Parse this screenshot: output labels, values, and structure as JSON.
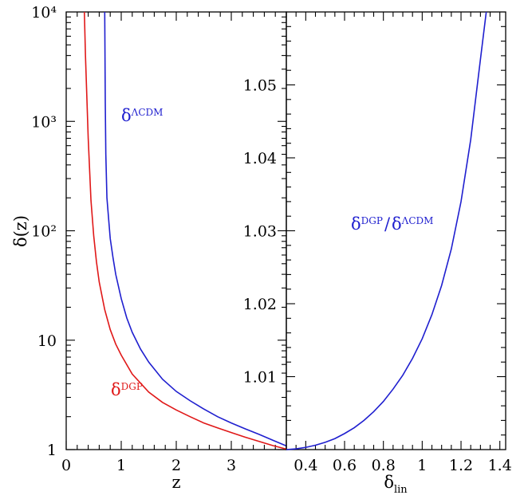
{
  "chart_data": [
    {
      "type": "line",
      "xlabel": "z",
      "ylabel": "δ(z)",
      "xlim": [
        0,
        4
      ],
      "ylim": [
        1,
        10000
      ],
      "yscale": "log",
      "grid": false,
      "xticks": [
        "0",
        "1",
        "2",
        "3"
      ],
      "yticks": [
        {
          "value": 1,
          "label": "1"
        },
        {
          "value": 10,
          "label": "10"
        },
        {
          "value": 100,
          "label": "10²"
        },
        {
          "value": 1000,
          "label": "10³"
        },
        {
          "value": 10000,
          "label": "10⁴"
        }
      ],
      "series": [
        {
          "label_base": "δ",
          "label_sup": "ΛCDM",
          "color": "#1f1fcf",
          "x": [
            0.7,
            0.71,
            0.72,
            0.74,
            0.77,
            0.8,
            0.85,
            0.9,
            1.0,
            1.1,
            1.2,
            1.35,
            1.5,
            1.75,
            2.0,
            2.25,
            2.5,
            2.75,
            3.0,
            3.25,
            3.5,
            3.75,
            4.0
          ],
          "y": [
            10000,
            1500,
            500,
            200,
            130,
            85,
            57,
            40,
            24,
            16,
            11.8,
            8.3,
            6.3,
            4.4,
            3.4,
            2.8,
            2.35,
            2.0,
            1.75,
            1.55,
            1.38,
            1.22,
            1.08
          ]
        },
        {
          "label_base": "δ",
          "label_sup": "DGP",
          "color": "#e01818",
          "x": [
            0.33,
            0.35,
            0.37,
            0.4,
            0.45,
            0.5,
            0.55,
            0.6,
            0.7,
            0.8,
            0.9,
            1.0,
            1.2,
            1.5,
            1.75,
            2.0,
            2.25,
            2.5,
            2.75,
            3.0,
            3.25,
            3.5,
            3.75,
            4.0
          ],
          "y": [
            10000,
            4000,
            2000,
            700,
            190,
            90,
            52,
            34,
            19,
            12.5,
            9.2,
            7.3,
            4.9,
            3.35,
            2.7,
            2.3,
            2.0,
            1.75,
            1.58,
            1.43,
            1.3,
            1.19,
            1.09,
            1.01
          ]
        }
      ]
    },
    {
      "type": "line",
      "xlabel_base": "δ",
      "xlabel_sub": "lin",
      "ylabel": "",
      "xlim": [
        0.3,
        1.43
      ],
      "ylim": [
        1.0,
        1.06
      ],
      "grid": false,
      "xticks": [
        "0.4",
        "0.6",
        "0.8",
        "1",
        "1.2",
        "1.4"
      ],
      "yticks": [
        "1.01",
        "1.02",
        "1.03",
        "1.04",
        "1.05"
      ],
      "series": [
        {
          "label_a_base": "δ",
          "label_a_sup": "DGP",
          "label_sep": "/",
          "label_b_base": "δ",
          "label_b_sup": "ΛCDM",
          "color": "#1f1fcf",
          "x": [
            0.3,
            0.35,
            0.4,
            0.45,
            0.5,
            0.55,
            0.6,
            0.65,
            0.7,
            0.75,
            0.8,
            0.85,
            0.9,
            0.95,
            1.0,
            1.05,
            1.1,
            1.15,
            1.2,
            1.25,
            1.3,
            1.33
          ],
          "y": [
            1.0,
            1.0001,
            1.0003,
            1.0006,
            1.001,
            1.0015,
            1.0022,
            1.003,
            1.004,
            1.0052,
            1.0066,
            1.0083,
            1.0102,
            1.0125,
            1.0152,
            1.0185,
            1.0225,
            1.0275,
            1.034,
            1.0425,
            1.0535,
            1.06
          ]
        }
      ]
    }
  ]
}
